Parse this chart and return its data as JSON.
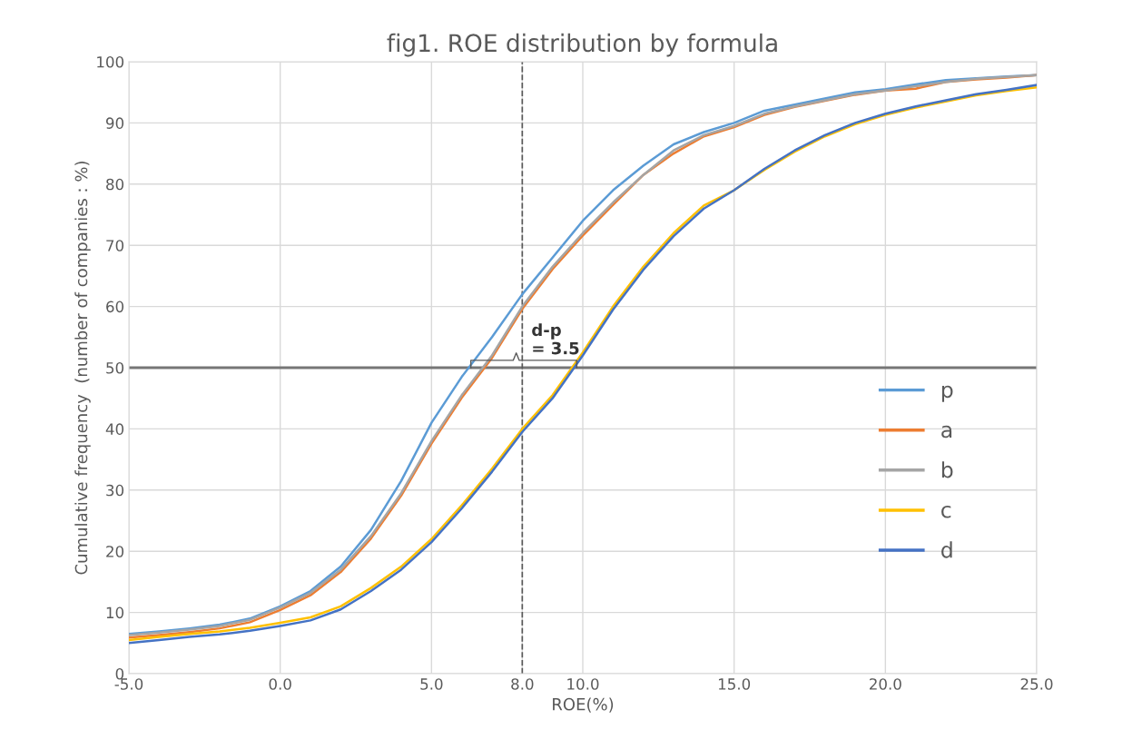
{
  "chart_data": {
    "type": "line",
    "title": "fig1. ROE distribution by formula",
    "xlabel": "ROE(%)",
    "ylabel": "Cumulative frequency  (number of companies : %)",
    "x": [
      -5,
      -4,
      -3,
      -2,
      -1,
      0,
      1,
      2,
      3,
      4,
      5,
      6,
      7,
      8,
      9,
      10,
      11,
      12,
      13,
      14,
      15,
      16,
      17,
      18,
      19,
      20,
      21,
      22,
      23,
      24,
      25
    ],
    "series": [
      {
        "name": "p",
        "color": "#5b9bd5",
        "values": [
          6.5,
          6.9,
          7.4,
          8.0,
          9.0,
          11.0,
          13.5,
          17.5,
          23.5,
          31.5,
          41,
          48.5,
          55,
          62,
          68,
          74,
          79,
          83,
          86.5,
          88.5,
          90,
          92,
          93,
          94,
          95,
          95.5,
          96.3,
          97,
          97.3,
          97.6,
          97.8
        ]
      },
      {
        "name": "a",
        "color": "#ed7d31",
        "values": [
          5.9,
          6.3,
          6.8,
          7.4,
          8.4,
          10.4,
          12.8,
          16.6,
          22.1,
          29.1,
          37.6,
          45.1,
          51.6,
          59.6,
          66.1,
          71.6,
          76.6,
          81.5,
          85,
          87.8,
          89.3,
          91.3,
          92.6,
          93.6,
          94.6,
          95.3,
          95.6,
          96.7,
          97.1,
          97.4,
          97.8
        ]
      },
      {
        "name": "b",
        "color": "#a5a5a5",
        "values": [
          6.3,
          6.7,
          7.2,
          7.8,
          8.8,
          10.8,
          13.2,
          17,
          22.5,
          29.5,
          38,
          45.5,
          52,
          60,
          66.5,
          72,
          77,
          81.5,
          85.5,
          88,
          89.5,
          91.5,
          92.7,
          93.7,
          94.7,
          95.3,
          96,
          96.7,
          97.2,
          97.5,
          97.8
        ]
      },
      {
        "name": "c",
        "color": "#ffc000",
        "values": [
          5.5,
          6.0,
          6.5,
          6.9,
          7.5,
          8.3,
          9.2,
          11.0,
          14.0,
          17.5,
          22.0,
          27.5,
          33.5,
          40.0,
          45.5,
          52.5,
          60.0,
          66.5,
          72.0,
          76.5,
          79,
          82.3,
          85.3,
          87.8,
          89.8,
          91.3,
          92.5,
          93.5,
          94.5,
          95.2,
          95.8
        ]
      },
      {
        "name": "d",
        "color": "#4472c4",
        "values": [
          5.0,
          5.5,
          6.0,
          6.4,
          7.0,
          7.8,
          8.7,
          10.5,
          13.5,
          17,
          21.5,
          27,
          33,
          39.5,
          45,
          52,
          59.5,
          66,
          71.5,
          76,
          79,
          82.5,
          85.5,
          88,
          90,
          91.5,
          92.7,
          93.7,
          94.7,
          95.4,
          96.2
        ]
      }
    ],
    "xlim": [
      -5,
      25
    ],
    "xticks": [
      {
        "value": -5,
        "label": "-5.0"
      },
      {
        "value": 0,
        "label": "0.0"
      },
      {
        "value": 5,
        "label": "5.0"
      },
      {
        "value": 8,
        "label": "8.0"
      },
      {
        "value": 10,
        "label": "10.0"
      },
      {
        "value": 15,
        "label": "15.0"
      },
      {
        "value": 20,
        "label": "20.0"
      },
      {
        "value": 25,
        "label": "25.0"
      }
    ],
    "ylim": [
      0,
      100
    ],
    "yticks": [
      0,
      10,
      20,
      30,
      40,
      50,
      60,
      70,
      80,
      90,
      100
    ],
    "ref_lines": [
      {
        "axis": "y",
        "value": 50,
        "label": null,
        "color": "#767676",
        "line_style": "solid"
      },
      {
        "axis": "x",
        "value": 8,
        "label": null,
        "color": "#595959",
        "line_style": "dashed"
      }
    ],
    "annotations": [
      {
        "text": "d-p\n= 3.5",
        "x": 8.3,
        "y": 50
      }
    ],
    "grid": true,
    "legend": "right",
    "marker": "none",
    "line_style": "solid"
  }
}
